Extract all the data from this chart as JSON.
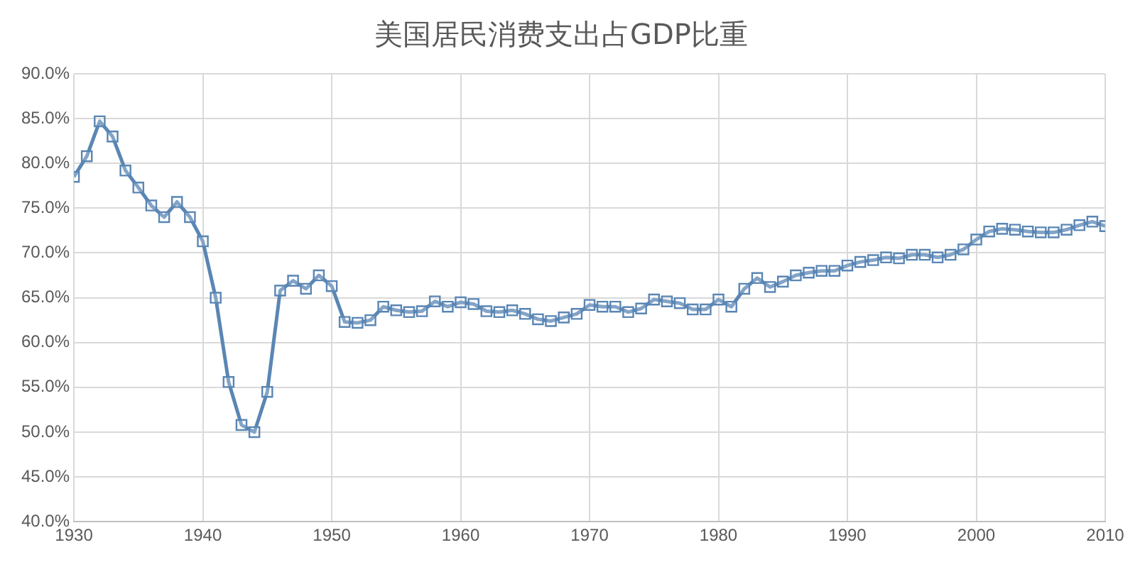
{
  "chart_data": {
    "type": "line",
    "title": "美国居民消费支出占GDP比重",
    "x": [
      1930,
      1931,
      1932,
      1933,
      1934,
      1935,
      1936,
      1937,
      1938,
      1939,
      1940,
      1941,
      1942,
      1943,
      1944,
      1945,
      1946,
      1947,
      1948,
      1949,
      1950,
      1951,
      1952,
      1953,
      1954,
      1955,
      1956,
      1957,
      1958,
      1959,
      1960,
      1961,
      1962,
      1963,
      1964,
      1965,
      1966,
      1967,
      1968,
      1969,
      1970,
      1971,
      1972,
      1973,
      1974,
      1975,
      1976,
      1977,
      1978,
      1979,
      1980,
      1981,
      1982,
      1983,
      1984,
      1985,
      1986,
      1987,
      1988,
      1989,
      1990,
      1991,
      1992,
      1993,
      1994,
      1995,
      1996,
      1997,
      1998,
      1999,
      2000,
      2001,
      2002,
      2003,
      2004,
      2005,
      2006,
      2007,
      2008,
      2009,
      2010
    ],
    "series": [
      {
        "color": "#5a86b4",
        "values": [
          78.5,
          80.8,
          84.7,
          83.0,
          79.2,
          77.3,
          75.3,
          74.0,
          75.7,
          74.0,
          71.3,
          65.0,
          55.6,
          50.8,
          50.0,
          54.5,
          65.8,
          66.9,
          66.0,
          67.5,
          66.3,
          62.3,
          62.2,
          62.5,
          64.0,
          63.6,
          63.4,
          63.5,
          64.6,
          64.0,
          64.5,
          64.3,
          63.5,
          63.4,
          63.6,
          63.2,
          62.6,
          62.4,
          62.8,
          63.2,
          64.2,
          64.0,
          64.0,
          63.4,
          63.8,
          64.8,
          64.6,
          64.4,
          63.7,
          63.7,
          64.8,
          64.0,
          66.0,
          67.2,
          66.2,
          66.8,
          67.5,
          67.8,
          68.0,
          68.0,
          68.6,
          69.0,
          69.2,
          69.5,
          69.4,
          69.8,
          69.8,
          69.5,
          69.8,
          70.4,
          71.5,
          72.4,
          72.7,
          72.6,
          72.4,
          72.3,
          72.3,
          72.6,
          73.1,
          73.5,
          73.0
        ]
      }
    ],
    "xlim": [
      1930,
      2010
    ],
    "xticks": [
      1930,
      1940,
      1950,
      1960,
      1970,
      1980,
      1990,
      2000,
      2010
    ],
    "ylim": [
      40,
      90
    ],
    "yticks": [
      {
        "value": 40,
        "label": "40.0%"
      },
      {
        "value": 45,
        "label": "45.0%"
      },
      {
        "value": 50,
        "label": "50.0%"
      },
      {
        "value": 55,
        "label": "55.0%"
      },
      {
        "value": 60,
        "label": "60.0%"
      },
      {
        "value": 65,
        "label": "65.0%"
      },
      {
        "value": 70,
        "label": "70.0%"
      },
      {
        "value": 75,
        "label": "75.0%"
      },
      {
        "value": 80,
        "label": "80.0%"
      },
      {
        "value": 85,
        "label": "85.0%"
      },
      {
        "value": 90,
        "label": "90.0%"
      }
    ],
    "grid": true,
    "legend": false,
    "marker": "square",
    "line_style": "solid"
  }
}
